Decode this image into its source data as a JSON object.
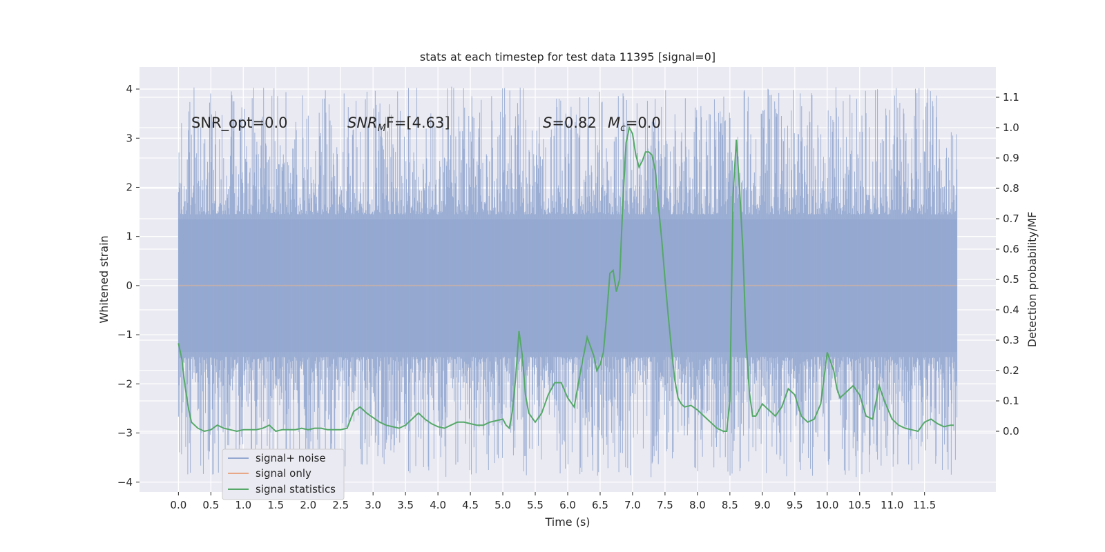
{
  "chart_data": {
    "type": "line",
    "title": "stats at each timestep for test data 11395 [signal=0]",
    "xlabel": "Time (s)",
    "ylabel_left": "Whitened strain",
    "ylabel_right": "Detection probability/MF",
    "xlim": [
      -0.6,
      12.6
    ],
    "ylim_left": [
      -4.2,
      4.45
    ],
    "ylim_right": [
      -0.2,
      1.2
    ],
    "xticks": [
      0.0,
      0.5,
      1.0,
      1.5,
      2.0,
      2.5,
      3.0,
      3.5,
      4.0,
      4.5,
      5.0,
      5.5,
      6.0,
      6.5,
      7.0,
      7.5,
      8.0,
      8.5,
      9.0,
      9.5,
      10.0,
      10.5,
      11.0,
      11.5
    ],
    "yticks_left": [
      -4,
      -3,
      -2,
      -1,
      0,
      1,
      2,
      3,
      4
    ],
    "yticks_right": [
      0.0,
      0.1,
      0.2,
      0.3,
      0.4,
      0.5,
      0.6,
      0.7,
      0.8,
      0.9,
      1.0,
      1.1
    ],
    "grid": true,
    "legend_position": "lower-left",
    "annotations": {
      "snr_opt": "SNR_opt=0.0",
      "snr_mf_sym": "SNR",
      "snr_mf_sub": "M",
      "snr_mf_rest": "F=[4.63]",
      "s_sym": "S",
      "s_rest": "=0.82",
      "mc_sym": "M",
      "mc_sub": "c",
      "mc_rest": "=0.0"
    },
    "series": [
      {
        "name": "signal+ noise",
        "color": "#95a8d0",
        "axis": "left",
        "x_range": [
          0.0,
          12.0
        ],
        "envelope": {
          "upper_typical": 1.35,
          "lower_typical": -1.35,
          "max": 4.05,
          "min": -3.9
        }
      },
      {
        "name": "signal only",
        "color": "#e8a888",
        "axis": "left",
        "x_range": [
          0.0,
          12.0
        ],
        "constant": 0.0
      },
      {
        "name": "signal statistics",
        "color": "#55a868",
        "axis": "right",
        "x": [
          0.0,
          0.05,
          0.1,
          0.15,
          0.2,
          0.3,
          0.4,
          0.5,
          0.6,
          0.7,
          0.8,
          0.9,
          1.0,
          1.1,
          1.2,
          1.3,
          1.4,
          1.5,
          1.6,
          1.7,
          1.8,
          1.9,
          2.0,
          2.1,
          2.2,
          2.3,
          2.4,
          2.5,
          2.6,
          2.7,
          2.8,
          2.9,
          3.0,
          3.1,
          3.2,
          3.3,
          3.4,
          3.5,
          3.6,
          3.7,
          3.8,
          3.9,
          4.0,
          4.1,
          4.2,
          4.3,
          4.4,
          4.5,
          4.6,
          4.7,
          4.8,
          4.9,
          5.0,
          5.05,
          5.1,
          5.15,
          5.2,
          5.25,
          5.3,
          5.35,
          5.4,
          5.5,
          5.6,
          5.7,
          5.8,
          5.9,
          6.0,
          6.1,
          6.2,
          6.3,
          6.35,
          6.4,
          6.45,
          6.5,
          6.55,
          6.6,
          6.65,
          6.7,
          6.75,
          6.8,
          6.85,
          6.9,
          6.95,
          7.0,
          7.05,
          7.1,
          7.15,
          7.2,
          7.25,
          7.3,
          7.35,
          7.4,
          7.45,
          7.5,
          7.55,
          7.6,
          7.65,
          7.7,
          7.75,
          7.8,
          7.9,
          8.0,
          8.1,
          8.2,
          8.3,
          8.4,
          8.45,
          8.5,
          8.55,
          8.6,
          8.65,
          8.7,
          8.75,
          8.8,
          8.85,
          8.9,
          9.0,
          9.1,
          9.2,
          9.3,
          9.4,
          9.5,
          9.6,
          9.7,
          9.8,
          9.9,
          10.0,
          10.05,
          10.1,
          10.15,
          10.2,
          10.3,
          10.4,
          10.5,
          10.6,
          10.7,
          10.8,
          10.9,
          11.0,
          11.1,
          11.2,
          11.3,
          11.4,
          11.5,
          11.6,
          11.7,
          11.8,
          11.9,
          11.95
        ],
        "y": [
          0.29,
          0.24,
          0.15,
          0.08,
          0.03,
          0.01,
          0.0,
          0.005,
          0.02,
          0.01,
          0.005,
          0.0,
          0.005,
          0.005,
          0.005,
          0.01,
          0.02,
          0.0,
          0.005,
          0.005,
          0.005,
          0.01,
          0.005,
          0.01,
          0.01,
          0.005,
          0.005,
          0.005,
          0.01,
          0.065,
          0.08,
          0.06,
          0.045,
          0.03,
          0.02,
          0.015,
          0.01,
          0.02,
          0.04,
          0.06,
          0.04,
          0.025,
          0.015,
          0.01,
          0.02,
          0.03,
          0.03,
          0.025,
          0.02,
          0.02,
          0.03,
          0.035,
          0.04,
          0.02,
          0.01,
          0.07,
          0.18,
          0.33,
          0.25,
          0.12,
          0.06,
          0.03,
          0.06,
          0.12,
          0.16,
          0.16,
          0.11,
          0.08,
          0.2,
          0.31,
          0.28,
          0.25,
          0.2,
          0.22,
          0.26,
          0.38,
          0.52,
          0.53,
          0.46,
          0.5,
          0.75,
          0.95,
          1.0,
          0.98,
          0.91,
          0.87,
          0.89,
          0.92,
          0.92,
          0.91,
          0.86,
          0.74,
          0.63,
          0.5,
          0.38,
          0.27,
          0.17,
          0.11,
          0.09,
          0.08,
          0.085,
          0.07,
          0.05,
          0.03,
          0.01,
          0.0,
          0.0,
          0.1,
          0.78,
          0.96,
          0.8,
          0.6,
          0.3,
          0.13,
          0.05,
          0.05,
          0.09,
          0.07,
          0.05,
          0.08,
          0.14,
          0.12,
          0.05,
          0.03,
          0.04,
          0.09,
          0.26,
          0.23,
          0.2,
          0.14,
          0.11,
          0.13,
          0.15,
          0.12,
          0.05,
          0.04,
          0.15,
          0.09,
          0.04,
          0.02,
          0.01,
          0.005,
          0.0,
          0.03,
          0.04,
          0.025,
          0.015,
          0.02,
          0.02
        ]
      }
    ]
  }
}
